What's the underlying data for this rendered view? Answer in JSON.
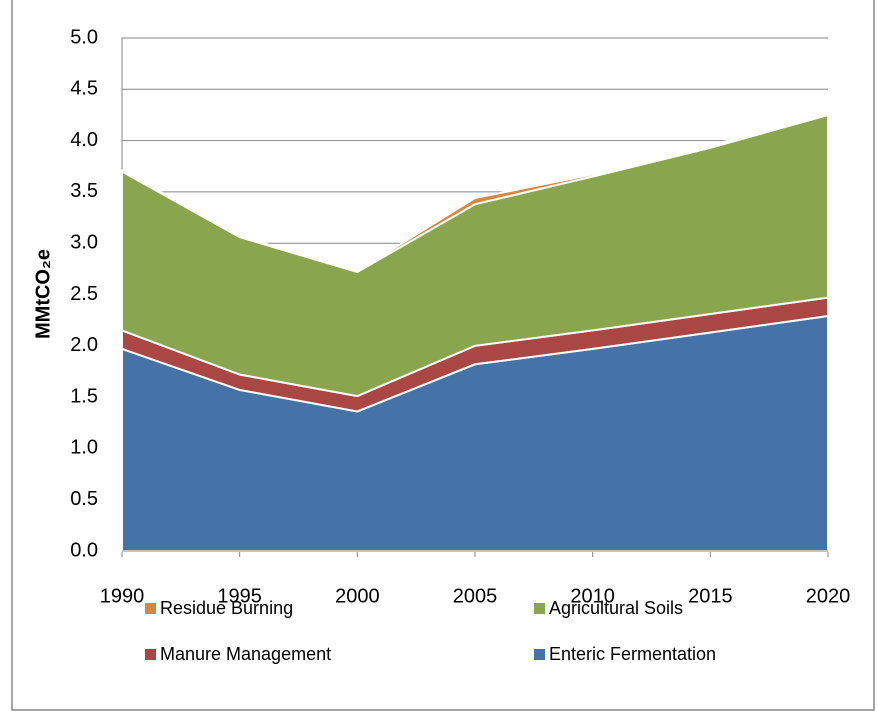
{
  "chart_data": {
    "type": "stacked-area",
    "y_label": "MMtCO₂e",
    "x": [
      1990,
      1995,
      2000,
      2005,
      2010,
      2015,
      2020
    ],
    "series": [
      {
        "name": "Enteric Fermentation",
        "color": "#4572a7",
        "values": [
          1.97,
          1.57,
          1.36,
          1.82,
          1.97,
          2.13,
          2.29
        ]
      },
      {
        "name": "Manure Management",
        "color": "#aa4643",
        "values": [
          0.18,
          0.15,
          0.15,
          0.18,
          0.18,
          0.18,
          0.18
        ]
      },
      {
        "name": "Agricultural Soils",
        "color": "#89a54e",
        "values": [
          1.55,
          1.34,
          1.21,
          1.38,
          1.5,
          1.62,
          1.78
        ]
      },
      {
        "name": "Residue Burning",
        "color": "#db843d",
        "values": [
          0.01,
          0.01,
          0.01,
          0.06,
          0.02,
          0.02,
          0.02
        ]
      }
    ],
    "xlim": [
      1990,
      2020
    ],
    "xticks": [
      1990,
      1995,
      2000,
      2005,
      2010,
      2015,
      2020
    ],
    "ylim": [
      0,
      5
    ],
    "yticks": [
      {
        "value": 0,
        "label": "0.0"
      },
      0.5,
      {
        "value": 1,
        "label": "1.0"
      },
      1.5,
      {
        "value": 2,
        "label": "2.0"
      },
      2.5,
      {
        "value": 3,
        "label": "3.0"
      },
      3.5,
      {
        "value": 4,
        "label": "4.0"
      },
      4.5,
      {
        "value": 5,
        "label": "5.0"
      }
    ],
    "grid": true
  }
}
